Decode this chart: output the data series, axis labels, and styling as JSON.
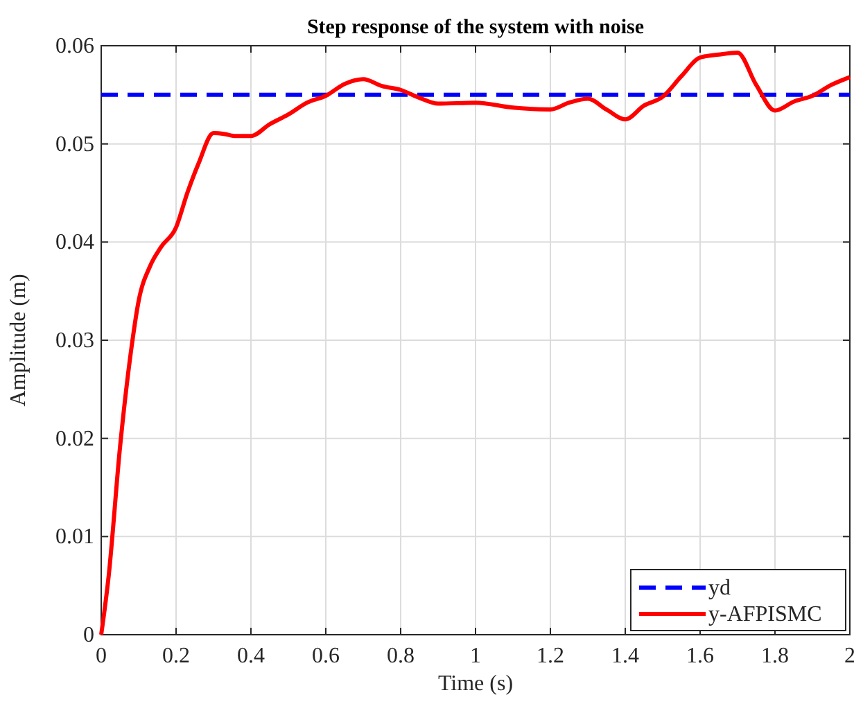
{
  "chart_data": {
    "type": "line",
    "title": "Step response of the system with noise",
    "xlabel": "Time (s)",
    "ylabel": "Amplitude (m)",
    "xlim": [
      0,
      2
    ],
    "xticks": [
      0,
      0.2,
      0.4,
      0.6,
      0.8,
      1,
      1.2,
      1.4,
      1.6,
      1.8,
      2
    ],
    "ylim": [
      0,
      0.06
    ],
    "yticks": [
      0,
      0.01,
      0.02,
      0.03,
      0.04,
      0.05,
      0.06
    ],
    "grid": true,
    "legend": "bottom right",
    "marker": "none",
    "series": [
      {
        "name": "yd",
        "color": "#0000ff",
        "line_style": "dashed",
        "x": [
          0,
          2
        ],
        "values": [
          0.055,
          0.055
        ]
      },
      {
        "name": "y-AFPISMC",
        "color": "#ff0000",
        "line_style": "solid",
        "x": [
          0,
          0.02,
          0.05,
          0.08,
          0.1,
          0.13,
          0.16,
          0.2,
          0.23,
          0.26,
          0.3,
          0.33,
          0.36,
          0.4,
          0.45,
          0.5,
          0.55,
          0.6,
          0.65,
          0.7,
          0.75,
          0.8,
          0.85,
          0.9,
          1.0,
          1.1,
          1.2,
          1.25,
          1.3,
          1.35,
          1.4,
          1.45,
          1.5,
          1.55,
          1.6,
          1.65,
          1.7,
          1.75,
          1.8,
          1.85,
          1.9,
          1.95,
          2.0
        ],
        "values": [
          0,
          0.006,
          0.019,
          0.029,
          0.034,
          0.0375,
          0.0395,
          0.0415,
          0.045,
          0.048,
          0.0511,
          0.051,
          0.0508,
          0.0508,
          0.052,
          0.053,
          0.0542,
          0.0549,
          0.0561,
          0.0566,
          0.0559,
          0.0555,
          0.0547,
          0.0541,
          0.0542,
          0.0537,
          0.0535,
          0.0542,
          0.0546,
          0.0535,
          0.0525,
          0.0539,
          0.0548,
          0.0569,
          0.0588,
          0.0591,
          0.0593,
          0.056,
          0.0534,
          0.0543,
          0.0549,
          0.056,
          0.0568
        ]
      }
    ]
  }
}
